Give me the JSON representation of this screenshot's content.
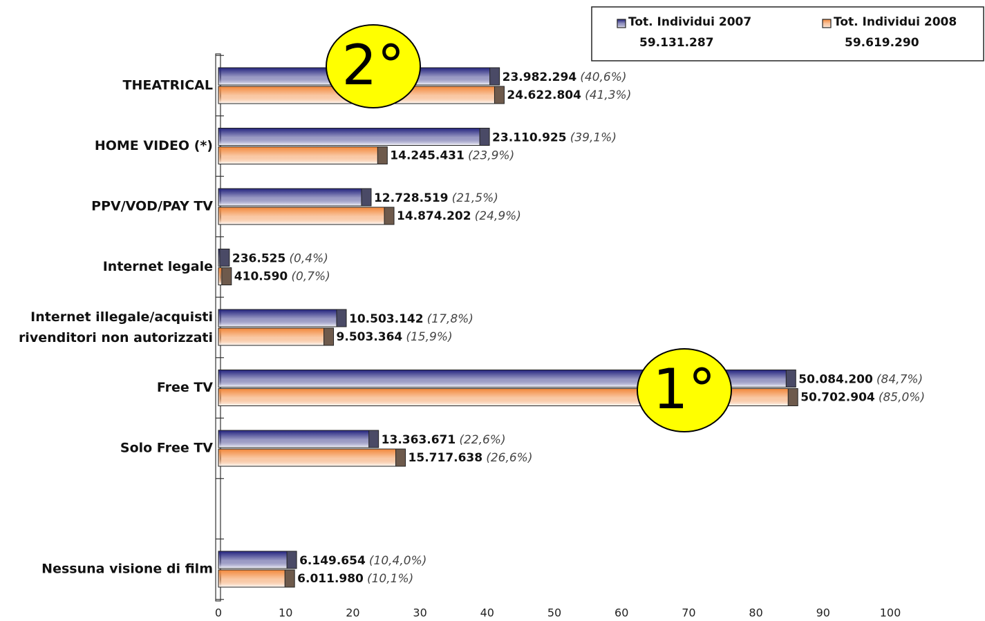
{
  "chart_data": {
    "type": "hbar",
    "categories": [
      "THEATRICAL",
      "HOME VIDEO (*)",
      "PPV/VOD/PAY TV",
      "Internet legale",
      "Internet illegale/acquisti\nrivenditori non autorizzati",
      "Free TV",
      "Solo Free TV",
      null,
      "Nessuna visione di film"
    ],
    "series": [
      {
        "name": "Tot. Individui  2007",
        "total": "59.131.287",
        "color": "#23237e",
        "values": [
          40.6,
          39.1,
          21.5,
          0.4,
          17.8,
          84.7,
          22.6,
          null,
          10.4
        ],
        "counts": [
          "23.982.294",
          "23.110.925",
          "12.728.519",
          "236.525",
          "10.503.142",
          "50.084.200",
          "13.363.671",
          null,
          "6.149.654"
        ],
        "value_labels": [
          "(40,6%)",
          "(39,1%)",
          "(21,5%)",
          "(0,4%)",
          "(17,8%)",
          "(84,7%)",
          "(22,6%)",
          null,
          "(10,4,0%)"
        ]
      },
      {
        "name": "Tot. Individui  2008",
        "total": "59.619.290",
        "color": "#f2873a",
        "values": [
          41.3,
          23.9,
          24.9,
          0.7,
          15.9,
          85.0,
          26.6,
          null,
          10.1
        ],
        "counts": [
          "24.622.804",
          "14.245.431",
          "14.874.202",
          "410.590",
          "9.503.364",
          "50.702.904",
          "15.717.638",
          null,
          "6.011.980"
        ],
        "value_labels": [
          "(41,3%)",
          "(23,9%)",
          "(24,9%)",
          "(0,7%)",
          "(15,9%)",
          "(85,0%)",
          "(26,6%)",
          null,
          "(10,1%)"
        ]
      }
    ],
    "xlim": [
      0,
      100
    ],
    "xticks": [
      0,
      10,
      20,
      30,
      40,
      50,
      60,
      70,
      80,
      90,
      100
    ],
    "annotations": [
      "2°",
      "1°"
    ]
  }
}
